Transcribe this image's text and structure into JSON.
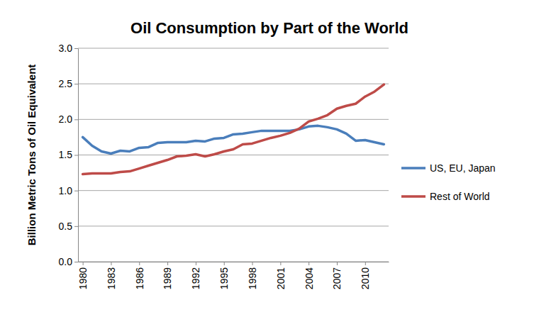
{
  "chart_data": {
    "type": "line",
    "title": "Oil Consumption by Part of the World",
    "y_label": "Billion Metric Tons of Oil Equivalent",
    "x": [
      1980,
      1981,
      1982,
      1983,
      1984,
      1985,
      1986,
      1987,
      1988,
      1989,
      1990,
      1991,
      1992,
      1993,
      1994,
      1995,
      1996,
      1997,
      1998,
      1999,
      2000,
      2001,
      2002,
      2003,
      2004,
      2005,
      2006,
      2007,
      2008,
      2009,
      2010,
      2011,
      2012
    ],
    "series": [
      {
        "name": "US, EU, Japan",
        "color": "#4a7ebb",
        "values": [
          1.75,
          1.63,
          1.55,
          1.52,
          1.56,
          1.55,
          1.6,
          1.61,
          1.67,
          1.68,
          1.68,
          1.68,
          1.7,
          1.69,
          1.73,
          1.74,
          1.79,
          1.8,
          1.82,
          1.84,
          1.84,
          1.84,
          1.84,
          1.86,
          1.9,
          1.91,
          1.89,
          1.86,
          1.8,
          1.7,
          1.71,
          1.68,
          1.65
        ]
      },
      {
        "name": "Rest of World",
        "color": "#be4b48",
        "values": [
          1.23,
          1.24,
          1.24,
          1.24,
          1.26,
          1.27,
          1.31,
          1.35,
          1.39,
          1.43,
          1.48,
          1.49,
          1.51,
          1.48,
          1.51,
          1.55,
          1.58,
          1.65,
          1.66,
          1.7,
          1.74,
          1.77,
          1.81,
          1.87,
          1.97,
          2.01,
          2.06,
          2.15,
          2.19,
          2.22,
          2.32,
          2.39,
          2.49
        ]
      }
    ],
    "xlim": [
      1979.5,
      2012.5
    ],
    "xticks": [
      1980,
      1983,
      1986,
      1989,
      1992,
      1995,
      1998,
      2001,
      2004,
      2007,
      2010
    ],
    "ylim": [
      0,
      3
    ],
    "yticks": [
      {
        "value": 0,
        "label": "0.0"
      },
      {
        "value": 0.5,
        "label": "0.5"
      },
      {
        "value": 1,
        "label": "1.0"
      },
      {
        "value": 1.5,
        "label": "1.5"
      },
      {
        "value": 2,
        "label": "2.0"
      },
      {
        "value": 2.5,
        "label": "2.5"
      },
      {
        "value": 3,
        "label": "3.0"
      }
    ],
    "grid": true,
    "legend": "right"
  }
}
